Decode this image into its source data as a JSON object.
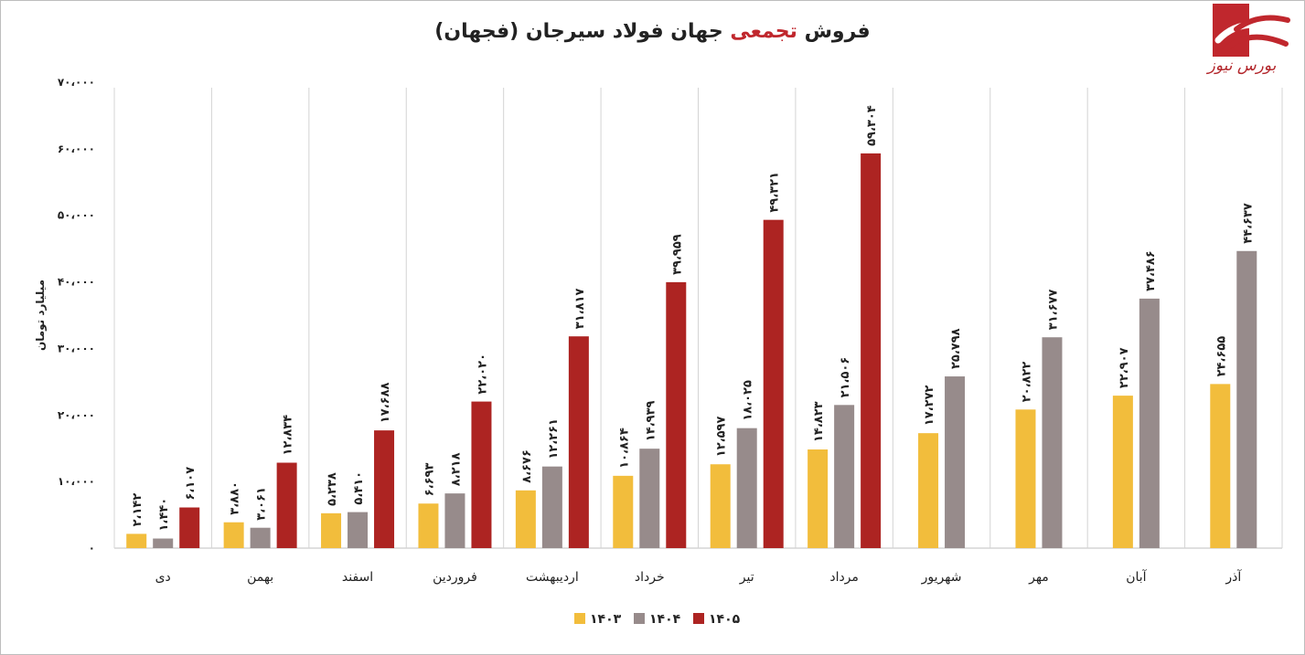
{
  "title_part1": "فروش ",
  "title_highlight": "تجمعی",
  "title_part2": " جهان فولاد سیرجان (فجهان)",
  "logo_text": "بورس نیوز",
  "chart_data": {
    "type": "bar",
    "ylabel": "میلیارد تومان",
    "ylim": [
      0,
      70000
    ],
    "y_ticks": [
      0,
      10000,
      20000,
      30000,
      40000,
      50000,
      60000,
      70000
    ],
    "y_tick_labels": [
      "۰",
      "۱۰،۰۰۰",
      "۲۰،۰۰۰",
      "۳۰،۰۰۰",
      "۴۰،۰۰۰",
      "۵۰،۰۰۰",
      "۶۰،۰۰۰",
      "۷۰،۰۰۰"
    ],
    "categories": [
      "دی",
      "بهمن",
      "اسفند",
      "فروردین",
      "اردیبهشت",
      "خرداد",
      "تیر",
      "مرداد",
      "شهریور",
      "مهر",
      "آبان",
      "آذر"
    ],
    "series": [
      {
        "name": "۱۴۰۳",
        "color": "#f2bd3c",
        "values": [
          2142,
          3880,
          5238,
          6693,
          8676,
          10864,
          12597,
          14823,
          17272,
          20822,
          22907,
          24655
        ],
        "labels": [
          "۲،۱۴۲",
          "۳،۸۸۰",
          "۵،۲۳۸",
          "۶،۶۹۳",
          "۸،۶۷۶",
          "۱۰،۸۶۴",
          "۱۲،۵۹۷",
          "۱۴،۸۲۳",
          "۱۷،۲۷۲",
          "۲۰،۸۲۲",
          "۲۲،۹۰۷",
          "۲۴،۶۵۵"
        ]
      },
      {
        "name": "۱۴۰۴",
        "color": "#978b8b",
        "values": [
          1440,
          3061,
          5410,
          8218,
          12261,
          14939,
          18025,
          21506,
          25798,
          31677,
          37486,
          44637
        ],
        "labels": [
          "۱،۴۴۰",
          "۳،۰۶۱",
          "۵،۴۱۰",
          "۸،۲۱۸",
          "۱۲،۲۶۱",
          "۱۴،۹۳۹",
          "۱۸،۰۲۵",
          "۲۱،۵۰۶",
          "۲۵،۷۹۸",
          "۳۱،۶۷۷",
          "۳۷،۴۸۶",
          "۴۴،۶۳۷"
        ]
      },
      {
        "name": "۱۴۰۵",
        "color": "#ad2422",
        "values": [
          6107,
          12834,
          17688,
          22020,
          31817,
          39959,
          49321,
          59304,
          null,
          null,
          null,
          null
        ],
        "labels": [
          "۶،۱۰۷",
          "۱۲،۸۳۴",
          "۱۷،۶۸۸",
          "۲۲،۰۲۰",
          "۳۱،۸۱۷",
          "۳۹،۹۵۹",
          "۴۹،۳۲۱",
          "۵۹،۳۰۴",
          null,
          null,
          null,
          null
        ]
      }
    ],
    "legend_position": "bottom-center",
    "grid": false
  }
}
